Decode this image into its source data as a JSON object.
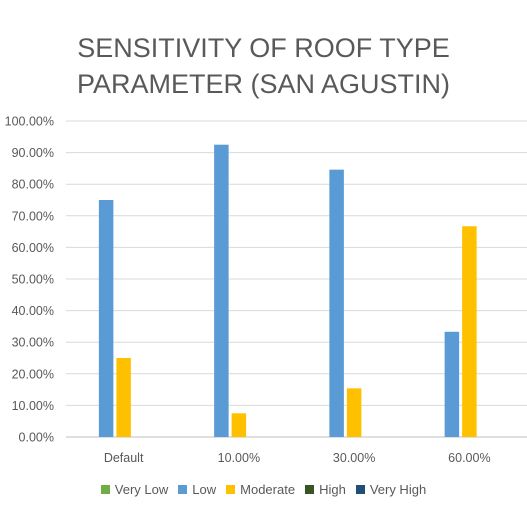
{
  "chart_data": {
    "type": "bar",
    "title": "SENSITIVITY OF ROOF TYPE PARAMETER (SAN AGUSTIN)",
    "xlabel": "",
    "ylabel": "",
    "categories": [
      "Default",
      "10.00%",
      "30.00%",
      "60.00%"
    ],
    "y_ticks": [
      "0.00%",
      "10.00%",
      "20.00%",
      "30.00%",
      "40.00%",
      "50.00%",
      "60.00%",
      "70.00%",
      "80.00%",
      "90.00%",
      "100.00%"
    ],
    "ylim": [
      0,
      100
    ],
    "grid": true,
    "legend_position": "bottom",
    "series": [
      {
        "name": "Very Low",
        "color": "#70ad47",
        "values": [
          0,
          0,
          0,
          0
        ]
      },
      {
        "name": "Low",
        "color": "#5b9bd5",
        "values": [
          75,
          92.5,
          84.6,
          33.3
        ]
      },
      {
        "name": "Moderate",
        "color": "#ffc000",
        "values": [
          25,
          7.5,
          15.4,
          66.7
        ]
      },
      {
        "name": "High",
        "color": "#375623",
        "values": [
          0,
          0,
          0,
          0
        ]
      },
      {
        "name": "Very High",
        "color": "#1f4e79",
        "values": [
          0,
          0,
          0,
          0
        ]
      }
    ]
  }
}
